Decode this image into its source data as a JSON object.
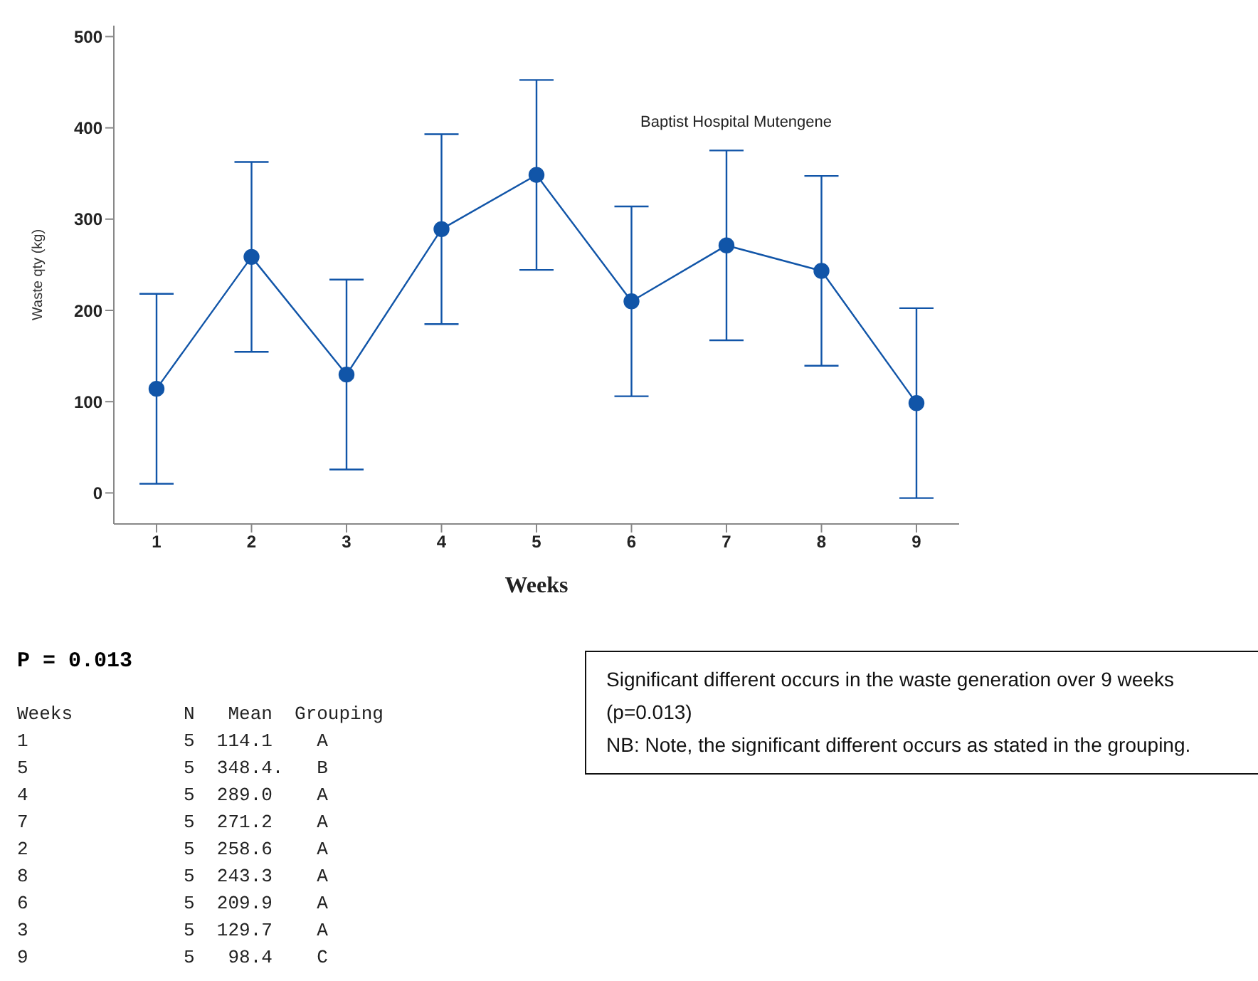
{
  "chart_data": {
    "type": "line",
    "xlabel": "Weeks",
    "ylabel": "Waste qty (kg)",
    "categories": [
      "1",
      "2",
      "3",
      "4",
      "5",
      "6",
      "7",
      "8",
      "9"
    ],
    "series": [
      {
        "color": "#1155a8",
        "values": [
          114.1,
          258.6,
          129.7,
          289.0,
          348.4,
          209.9,
          271.2,
          243.3,
          98.4
        ],
        "errors": [
          104,
          104,
          104,
          104,
          104,
          104,
          104,
          104,
          104
        ]
      }
    ],
    "ylim": [
      -34,
      512
    ],
    "yticks": [
      0,
      100,
      200,
      300,
      400,
      500
    ],
    "grid": false,
    "legend": false,
    "marker": "circle",
    "line_style": "solid",
    "annotations": [
      "Baptist Hospital Mutengene",
      "P = 0.013",
      "Weeks          N   Mean  Grouping",
      "1              5  114.1    A",
      "5              5  348.4.   B",
      "4              5  289.0    A",
      "7              5  271.2    A",
      "2              5  258.6    A",
      "8              5  243.3    A",
      "6              5  209.9    A",
      "3              5  129.7    A",
      "9              5   98.4    C",
      "Significant different occurs in the waste generation over 9 weeks (p=0.013)",
      "NB: Note, the significant different occurs as stated in the grouping."
    ]
  }
}
